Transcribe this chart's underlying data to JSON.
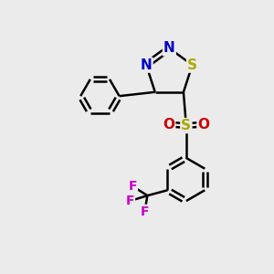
{
  "bg_color": "#ebebeb",
  "atom_colors": {
    "N": "#0000cc",
    "S_ring": "#aaaa00",
    "S_sulfonyl": "#aaaa00",
    "O": "#cc0000",
    "F": "#cc00cc",
    "C": "#000000"
  },
  "bond_color": "#000000",
  "bond_width": 1.8,
  "figsize": [
    3.0,
    3.0
  ],
  "dpi": 100,
  "font_size": 11
}
